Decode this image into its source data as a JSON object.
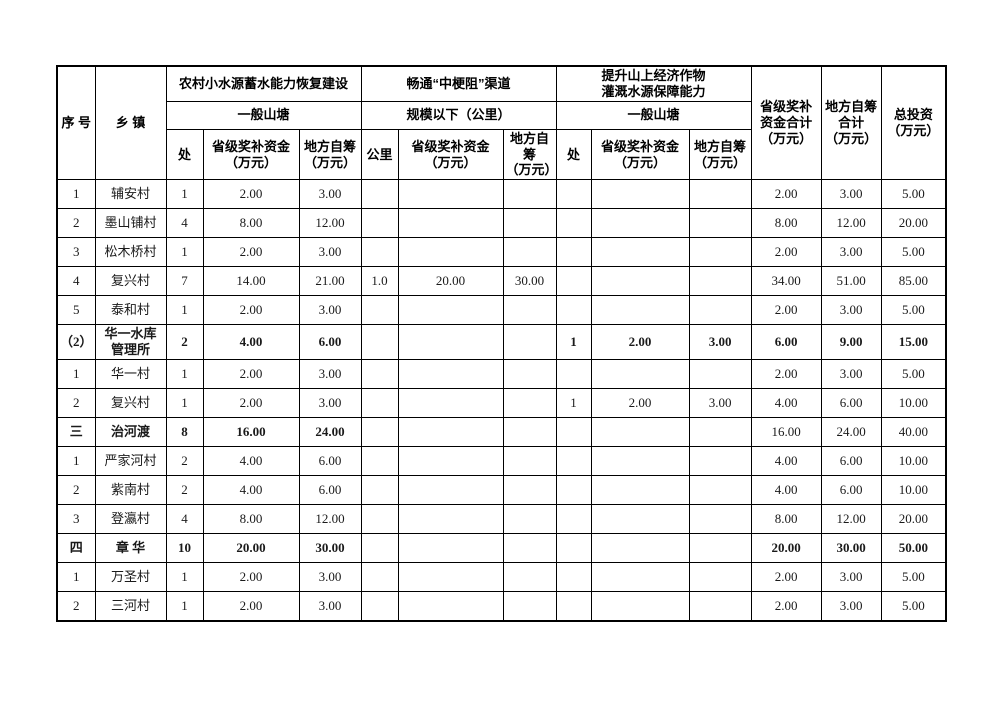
{
  "table": {
    "border_color": "#000000",
    "header": {
      "serial": "序  号",
      "township": "乡  镇",
      "sections": [
        {
          "title": "农村小水源蓄水能力恢复建设",
          "subtitle": "一般山塘",
          "col1": "处",
          "col2": "省级奖补资金\n（万元）",
          "col3": "地方自筹\n（万元）"
        },
        {
          "title": "畅通“中梗阻”渠道",
          "subtitle": "规模以下（公里）",
          "col1": "公里",
          "col2": "省级奖补资金\n（万元）",
          "col3": "地方自筹\n（万元）"
        },
        {
          "title": "提升山上经济作物\n灌溉水源保障能力",
          "subtitle": "一般山塘",
          "col1": "处",
          "col2": "省级奖补资金\n（万元）",
          "col3": "地方自筹\n（万元）"
        }
      ],
      "provincial_subsidy_total": "省级奖补\n资金合计\n（万元）",
      "local_fund_total": "地方自筹\n合计\n（万元）",
      "total_investment": "总投资\n（万元）"
    },
    "rows": [
      {
        "cells": [
          "1",
          "辅安村",
          "1",
          "2.00",
          "3.00",
          "",
          "",
          "",
          "",
          "",
          "",
          "2.00",
          "3.00",
          "5.00"
        ],
        "bold": null
      },
      {
        "cells": [
          "2",
          "墨山铺村",
          "4",
          "8.00",
          "12.00",
          "",
          "",
          "",
          "",
          "",
          "",
          "8.00",
          "12.00",
          "20.00"
        ],
        "bold": null
      },
      {
        "cells": [
          "3",
          "松木桥村",
          "1",
          "2.00",
          "3.00",
          "",
          "",
          "",
          "",
          "",
          "",
          "2.00",
          "3.00",
          "5.00"
        ],
        "bold": null
      },
      {
        "cells": [
          "4",
          "复兴村",
          "7",
          "14.00",
          "21.00",
          "1.0",
          "20.00",
          "30.00",
          "",
          "",
          "",
          "34.00",
          "51.00",
          "85.00"
        ],
        "bold": null
      },
      {
        "cells": [
          "5",
          "泰和村",
          "1",
          "2.00",
          "3.00",
          "",
          "",
          "",
          "",
          "",
          "",
          "2.00",
          "3.00",
          "5.00"
        ],
        "bold": null
      },
      {
        "cells": [
          "（2）",
          "华一水库\n管理所",
          "2",
          "4.00",
          "6.00",
          "",
          "",
          "",
          "1",
          "2.00",
          "3.00",
          "6.00",
          "9.00",
          "15.00"
        ],
        "bold": "all"
      },
      {
        "cells": [
          "1",
          "华一村",
          "1",
          "2.00",
          "3.00",
          "",
          "",
          "",
          "",
          "",
          "",
          "2.00",
          "3.00",
          "5.00"
        ],
        "bold": null
      },
      {
        "cells": [
          "2",
          "复兴村",
          "1",
          "2.00",
          "3.00",
          "",
          "",
          "",
          "1",
          "2.00",
          "3.00",
          "4.00",
          "6.00",
          "10.00"
        ],
        "bold": null
      },
      {
        "cells": [
          "三",
          "治河渡",
          "8",
          "16.00",
          "24.00",
          "",
          "",
          "",
          "",
          "",
          "",
          "16.00",
          "24.00",
          "40.00"
        ],
        "bold": [
          0,
          1,
          2,
          3,
          4
        ]
      },
      {
        "cells": [
          "1",
          "严家河村",
          "2",
          "4.00",
          "6.00",
          "",
          "",
          "",
          "",
          "",
          "",
          "4.00",
          "6.00",
          "10.00"
        ],
        "bold": null
      },
      {
        "cells": [
          "2",
          "紫南村",
          "2",
          "4.00",
          "6.00",
          "",
          "",
          "",
          "",
          "",
          "",
          "4.00",
          "6.00",
          "10.00"
        ],
        "bold": null
      },
      {
        "cells": [
          "3",
          "登瀛村",
          "4",
          "8.00",
          "12.00",
          "",
          "",
          "",
          "",
          "",
          "",
          "8.00",
          "12.00",
          "20.00"
        ],
        "bold": null
      },
      {
        "cells": [
          "四",
          "章  华",
          "10",
          "20.00",
          "30.00",
          "",
          "",
          "",
          "",
          "",
          "",
          "20.00",
          "30.00",
          "50.00"
        ],
        "bold": "all"
      },
      {
        "cells": [
          "1",
          "万圣村",
          "1",
          "2.00",
          "3.00",
          "",
          "",
          "",
          "",
          "",
          "",
          "2.00",
          "3.00",
          "5.00"
        ],
        "bold": null
      },
      {
        "cells": [
          "2",
          "三河村",
          "1",
          "2.00",
          "3.00",
          "",
          "",
          "",
          "",
          "",
          "",
          "2.00",
          "3.00",
          "5.00"
        ],
        "bold": null
      }
    ]
  }
}
